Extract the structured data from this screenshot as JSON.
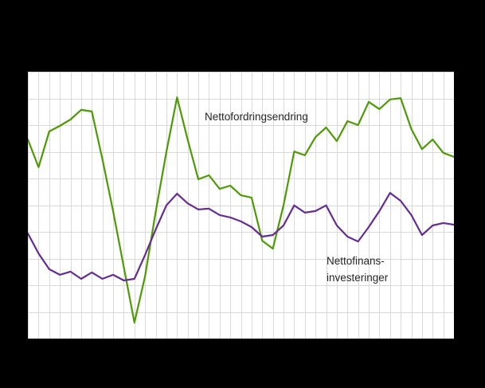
{
  "page": {
    "background_color": "#000000"
  },
  "chart": {
    "plot_background": "#ffffff",
    "grid_color": "#d9d9d9",
    "text_color": "#262626",
    "annotations": {
      "green_label": "Nettofordringsendring",
      "purple_label_line1": "Nettofinans-",
      "purple_label_line2": "investeringer"
    }
  },
  "chart_data": {
    "type": "line",
    "title": "",
    "xlabel": "",
    "ylabel": "",
    "axis_tick_labels_visible": false,
    "grid": true,
    "ylim": [
      0,
      100
    ],
    "x": [
      0,
      1,
      2,
      3,
      4,
      5,
      6,
      7,
      8,
      9,
      10,
      11,
      12,
      13,
      14,
      15,
      16,
      17,
      18,
      19,
      20,
      21,
      22,
      23,
      24,
      25,
      26,
      27,
      28,
      29,
      30,
      31,
      32,
      33,
      34,
      35,
      36,
      37,
      38,
      39,
      40
    ],
    "series": [
      {
        "name": "Nettofordringsendring",
        "color": "#4e9a06",
        "values": [
          74.6,
          64.2,
          77.6,
          79.7,
          82.1,
          85.7,
          85.1,
          67.2,
          47.8,
          26.9,
          6.0,
          23.3,
          47.5,
          69.9,
          90.4,
          74.6,
          59.7,
          61.2,
          56.1,
          57.3,
          53.7,
          52.8,
          36.7,
          33.7,
          49.9,
          70.1,
          68.7,
          75.5,
          79.1,
          74.0,
          81.5,
          80.0,
          88.7,
          86.0,
          89.6,
          90.1,
          78.5,
          71.0,
          74.6,
          69.6,
          68.1
        ]
      },
      {
        "name": "Nettofinansinvesteringer",
        "color": "#662d91",
        "values": [
          39.4,
          31.9,
          26.0,
          23.9,
          25.1,
          22.4,
          24.8,
          22.4,
          23.9,
          21.8,
          22.4,
          31.3,
          40.9,
          49.9,
          54.3,
          50.7,
          48.4,
          48.7,
          46.3,
          45.4,
          43.9,
          41.8,
          38.2,
          38.8,
          42.4,
          49.9,
          47.2,
          47.8,
          49.9,
          42.4,
          38.2,
          36.4,
          41.8,
          47.8,
          54.6,
          51.6,
          46.3,
          38.8,
          42.4,
          43.3,
          42.7
        ]
      }
    ],
    "legend": "in-plot text annotations"
  }
}
